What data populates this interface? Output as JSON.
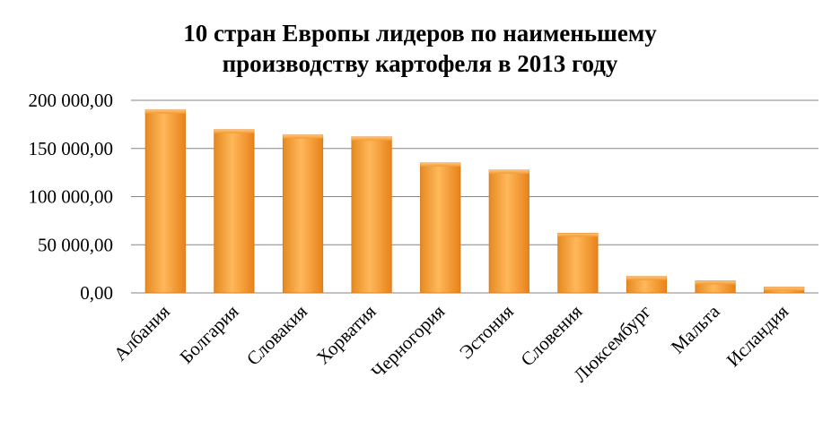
{
  "chart_data": {
    "type": "bar",
    "title_lines": [
      "10 стран Европы лидеров по  наименьшему",
      "производству картофеля  в 2013 году"
    ],
    "categories": [
      "Албания",
      "Болгария",
      "Словакия",
      "Хорватия",
      "Черногория",
      "Эстония",
      "Словения",
      "Люксембург",
      "Мальта",
      "Исландия"
    ],
    "values": [
      190000,
      169500,
      164000,
      162000,
      135000,
      127500,
      62000,
      17000,
      12500,
      6000
    ],
    "ylim": [
      0,
      200000
    ],
    "y_ticks": [
      {
        "value": 0,
        "label": "0,00"
      },
      {
        "value": 50000,
        "label": "50 000,00"
      },
      {
        "value": 100000,
        "label": "100 000,00"
      },
      {
        "value": 150000,
        "label": "150 000,00"
      },
      {
        "value": 200000,
        "label": "200 000,00"
      }
    ],
    "grid": true,
    "legend": "none",
    "colors": {
      "bar_light": "#FBB048",
      "bar_mid": "#F7941D",
      "bar_dark": "#E07A10",
      "grid": "#868686"
    }
  }
}
